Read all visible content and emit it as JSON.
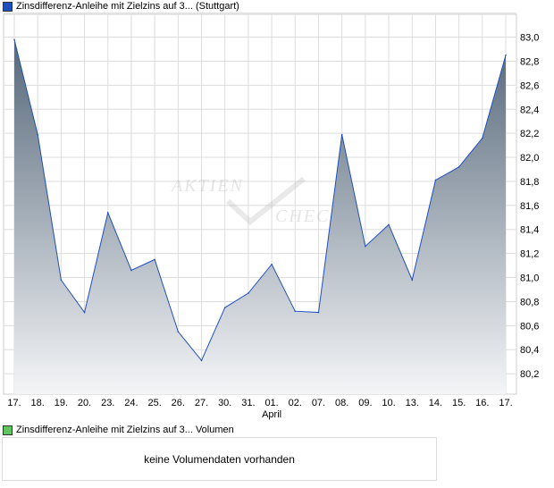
{
  "chart_data": {
    "type": "area",
    "title": "Zinsdifferenz-Anleihe mit Zielzins auf 3... (Stuttgart)",
    "categories": [
      "17.",
      "18.",
      "19.",
      "20.",
      "23.",
      "24.",
      "25.",
      "26.",
      "27.",
      "30.",
      "31.",
      "01.",
      "02.",
      "07.",
      "08.",
      "09.",
      "10.",
      "13.",
      "14.",
      "15.",
      "16.",
      "17."
    ],
    "month_label": "April",
    "values": [
      82.98,
      82.19,
      80.98,
      80.71,
      81.54,
      81.06,
      81.15,
      80.55,
      80.31,
      80.75,
      80.87,
      81.11,
      80.72,
      80.71,
      82.19,
      81.26,
      81.44,
      80.98,
      81.81,
      81.92,
      82.16,
      82.85
    ],
    "yticks": [
      "80,2",
      "80,4",
      "80,6",
      "80,8",
      "81,0",
      "81,2",
      "81,4",
      "81,6",
      "81,8",
      "82,0",
      "82,2",
      "82,4",
      "82,6",
      "82,8",
      "83,0"
    ],
    "ylim": [
      80.03,
      83.19
    ],
    "grid": true,
    "line_color": "#1f4fbf",
    "legend_color": "#1f4fbf",
    "watermark": "AKTIEN CHECK"
  },
  "volume": {
    "legend": "Zinsdifferenz-Anleihe mit Zielzins auf 3... Volumen",
    "legend_color": "#5fc65f",
    "message": "keine Volumendaten vorhanden"
  }
}
